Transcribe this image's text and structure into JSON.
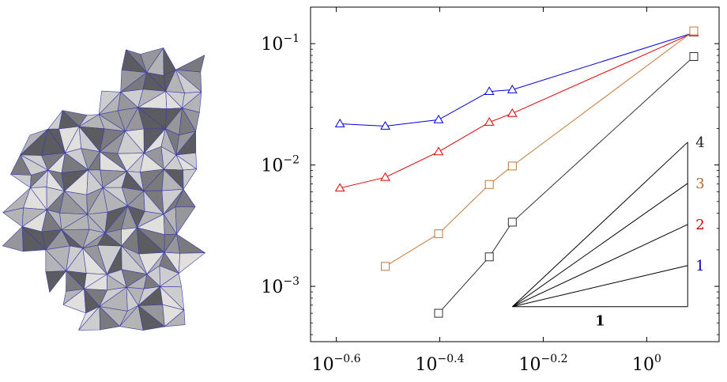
{
  "chart_data": [
    {
      "type": "mesh",
      "colors": {
        "faces": [
          "#5c5c60",
          "#7a7a7e",
          "#97979b",
          "#b4b3b6",
          "#cdccce",
          "#e2e0dc"
        ],
        "edges": "#3a3aa8"
      }
    },
    {
      "type": "line",
      "xscale": "log",
      "yscale": "log",
      "xlim": [
        0.224,
        1.38
      ],
      "ylim": [
        0.00035,
        0.2
      ],
      "grid": false,
      "xticks": [
        {
          "base": "10",
          "exp": "−0.6",
          "value": 0.2512
        },
        {
          "base": "10",
          "exp": "−0.4",
          "value": 0.3981
        },
        {
          "base": "10",
          "exp": "−0.2",
          "value": 0.631
        },
        {
          "base": "10",
          "exp": "0",
          "value": 1.0
        }
      ],
      "yticks": [
        {
          "base": "10",
          "exp": "−1",
          "value": 0.1
        },
        {
          "base": "10",
          "exp": "−2",
          "value": 0.01
        },
        {
          "base": "10",
          "exp": "−3",
          "value": 0.001
        }
      ],
      "series": [
        {
          "color": "#0000e0",
          "marker": "triangle",
          "x": [
            0.2553,
            0.3124,
            0.396,
            0.4963,
            0.5498,
            1.233
          ],
          "y": [
            0.02187,
            0.0209,
            0.0236,
            0.04033,
            0.0417,
            0.123
          ]
        },
        {
          "color": "#e00000",
          "marker": "triangle",
          "x": [
            0.2553,
            0.3124,
            0.396,
            0.4963,
            0.5498,
            1.233
          ],
          "y": [
            0.00645,
            0.00791,
            0.01286,
            0.0225,
            0.02662,
            0.123
          ]
        },
        {
          "color": "#c07838",
          "marker": "square",
          "x": [
            0.3124,
            0.396,
            0.4963,
            0.5498,
            1.233
          ],
          "y": [
            0.00146,
            0.00271,
            0.00691,
            0.00981,
            0.1273
          ]
        },
        {
          "color": "#303030",
          "marker": "square",
          "x": [
            0.396,
            0.4963,
            0.5498,
            1.233
          ],
          "y": [
            0.0006,
            0.00175,
            0.00338,
            0.07827
          ]
        }
      ],
      "slope_triangle": {
        "origin": [
          0.55,
          0.00068
        ],
        "run_end_x": 1.2,
        "run_label": "1",
        "slopes": [
          {
            "slope": 1,
            "label": "1",
            "color": "#0000c0"
          },
          {
            "slope": 2,
            "label": "2",
            "color": "#d00000"
          },
          {
            "slope": 3,
            "label": "3",
            "color": "#b06830"
          },
          {
            "slope": 4,
            "label": "4",
            "color": "#202020"
          }
        ]
      }
    }
  ]
}
